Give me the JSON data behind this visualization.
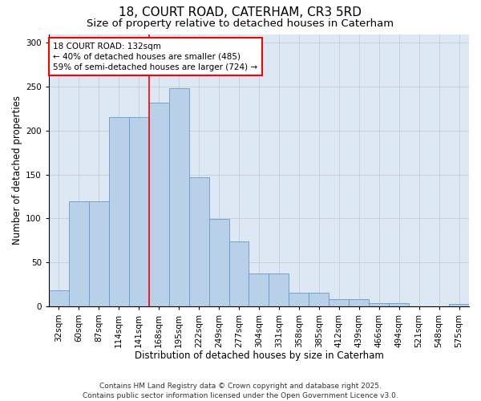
{
  "title": "18, COURT ROAD, CATERHAM, CR3 5RD",
  "subtitle": "Size of property relative to detached houses in Caterham",
  "xlabel": "Distribution of detached houses by size in Caterham",
  "ylabel": "Number of detached properties",
  "categories": [
    "32sqm",
    "60sqm",
    "87sqm",
    "114sqm",
    "141sqm",
    "168sqm",
    "195sqm",
    "222sqm",
    "249sqm",
    "277sqm",
    "304sqm",
    "331sqm",
    "358sqm",
    "385sqm",
    "412sqm",
    "439sqm",
    "466sqm",
    "494sqm",
    "521sqm",
    "548sqm",
    "575sqm"
  ],
  "values": [
    18,
    119,
    119,
    215,
    215,
    232,
    248,
    147,
    99,
    74,
    37,
    37,
    15,
    15,
    8,
    8,
    3,
    3,
    0,
    0,
    2
  ],
  "bar_color": "#b8d0e8",
  "bar_edge_color": "#6699cc",
  "grid_color": "#cccccc",
  "bg_color": "#dce8f4",
  "annotation_text": "18 COURT ROAD: 132sqm\n← 40% of detached houses are smaller (485)\n59% of semi-detached houses are larger (724) →",
  "vline_x": 4.5,
  "ylim": [
    0,
    310
  ],
  "yticks": [
    0,
    50,
    100,
    150,
    200,
    250,
    300
  ],
  "footer": "Contains HM Land Registry data © Crown copyright and database right 2025.\nContains public sector information licensed under the Open Government Licence v3.0.",
  "title_fontsize": 11,
  "subtitle_fontsize": 9.5,
  "axis_label_fontsize": 8.5,
  "tick_fontsize": 7.5,
  "footer_fontsize": 6.5,
  "annotation_fontsize": 7.5
}
